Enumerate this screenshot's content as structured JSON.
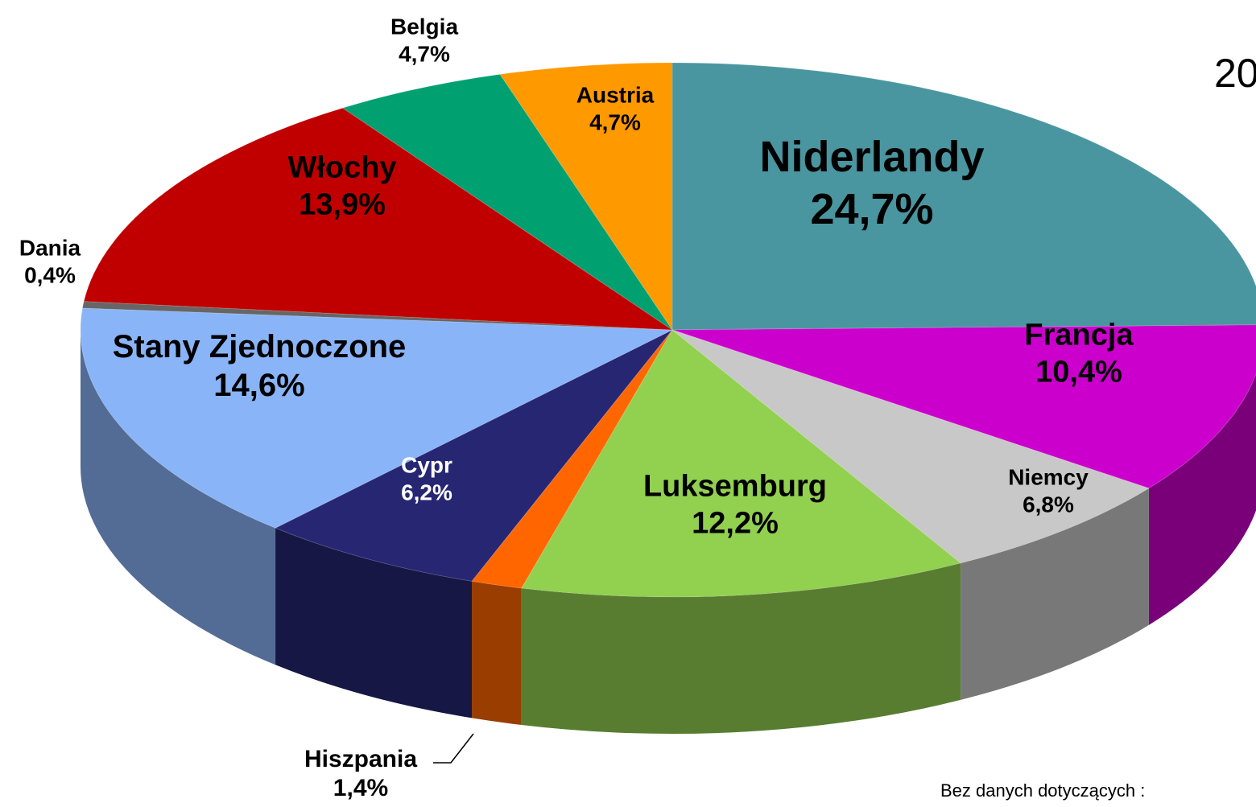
{
  "chart_data": {
    "type": "pie",
    "title": "20",
    "categories": [
      "Niderlandy",
      "Francja",
      "Niemcy",
      "Luksemburg",
      "Hiszpania",
      "Cypr",
      "Stany Zjednoczone",
      "Dania",
      "Włochy",
      "Belgia",
      "Austria"
    ],
    "values": [
      24.7,
      10.4,
      6.8,
      12.2,
      1.4,
      6.2,
      14.6,
      0.4,
      13.9,
      4.7,
      4.7
    ],
    "value_labels": [
      "24,7%",
      "10,4%",
      "6,8%",
      "12,2%",
      "1,4%",
      "6,2%",
      "14,6%",
      "0,4%",
      "13,9%",
      "4,7%",
      "4,7%"
    ],
    "colors": [
      "#4a96a0",
      "#cc00cc",
      "#c8c8c8",
      "#92d050",
      "#ff6600",
      "#262673",
      "#8ab4f8",
      "#666666",
      "#c00000",
      "#00a070",
      "#ff9900"
    ],
    "annotation": "Bez danych dotyczących :"
  }
}
